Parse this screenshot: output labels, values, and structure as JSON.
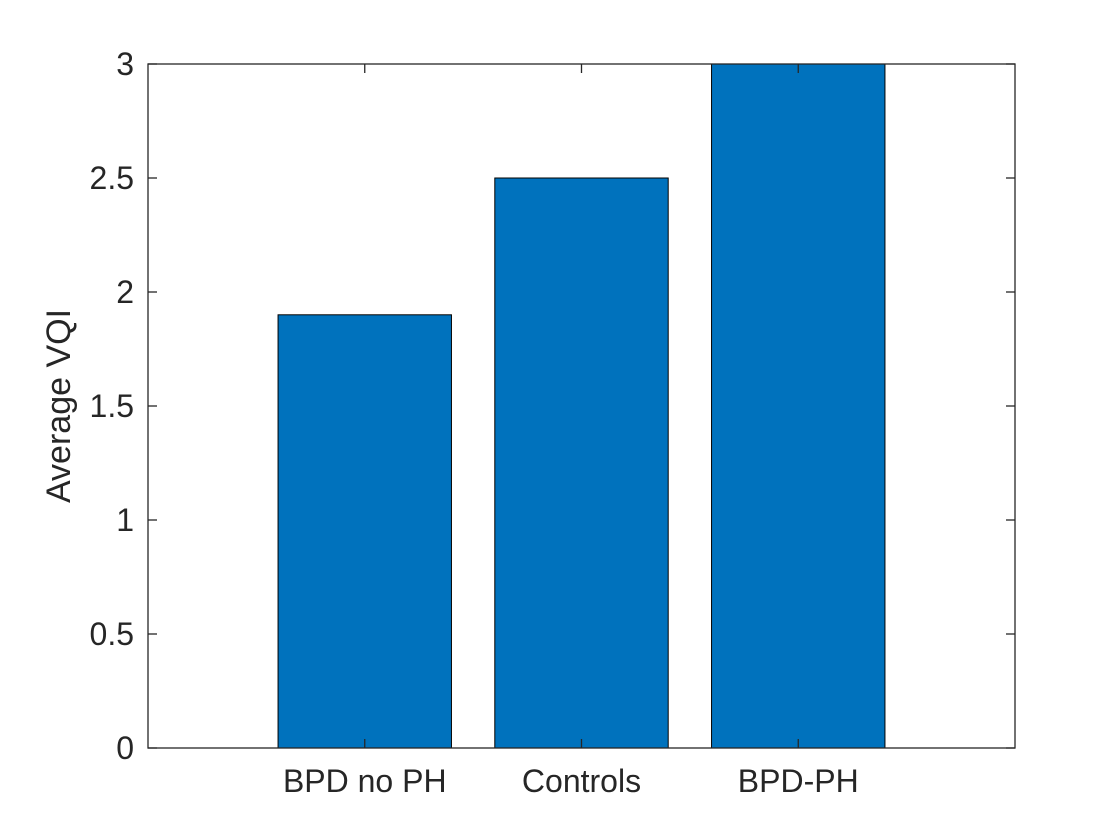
{
  "chart_data": {
    "type": "bar",
    "title": "",
    "xlabel": "",
    "ylabel": "Average VQI",
    "categories": [
      "BPD no PH",
      "Controls",
      "BPD-PH"
    ],
    "values": [
      1.9,
      2.5,
      3.0
    ],
    "ylim": [
      0,
      3
    ],
    "yticks": [
      0,
      0.5,
      1,
      1.5,
      2,
      2.5,
      3
    ],
    "ytick_labels": [
      "0",
      "0.5",
      "1",
      "1.5",
      "2",
      "2.5",
      "3"
    ],
    "grid": false,
    "legend": "none",
    "bar_color": "#0072BD",
    "bar_edge_color": "#000000",
    "axis_color": "#262626"
  }
}
